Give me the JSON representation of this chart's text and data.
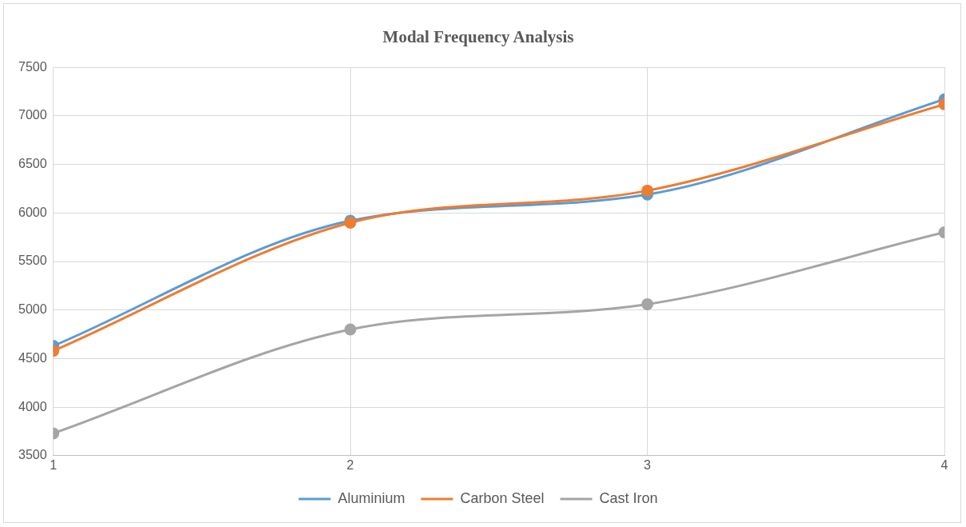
{
  "chart_data": {
    "type": "line",
    "title": "Modal Frequency Analysis",
    "x": [
      1,
      2,
      3,
      4
    ],
    "xlim": [
      1,
      4
    ],
    "xticks": [
      1,
      2,
      3,
      4
    ],
    "ylim": [
      3500,
      7500
    ],
    "yticks": [
      3500,
      4000,
      4500,
      5000,
      5500,
      6000,
      6500,
      7000,
      7500
    ],
    "grid": true,
    "legend": "bottom",
    "marker": "circle",
    "line_style": "solid",
    "series": [
      {
        "name": "Aluminium",
        "color": "#5b9bd5",
        "values": [
          4630,
          5920,
          6190,
          7170
        ]
      },
      {
        "name": "Carbon Steel",
        "color": "#ed7d31",
        "values": [
          4580,
          5900,
          6230,
          7120
        ]
      },
      {
        "name": "Cast Iron",
        "color": "#a5a5a5",
        "values": [
          3730,
          4800,
          5060,
          5800
        ]
      }
    ]
  }
}
